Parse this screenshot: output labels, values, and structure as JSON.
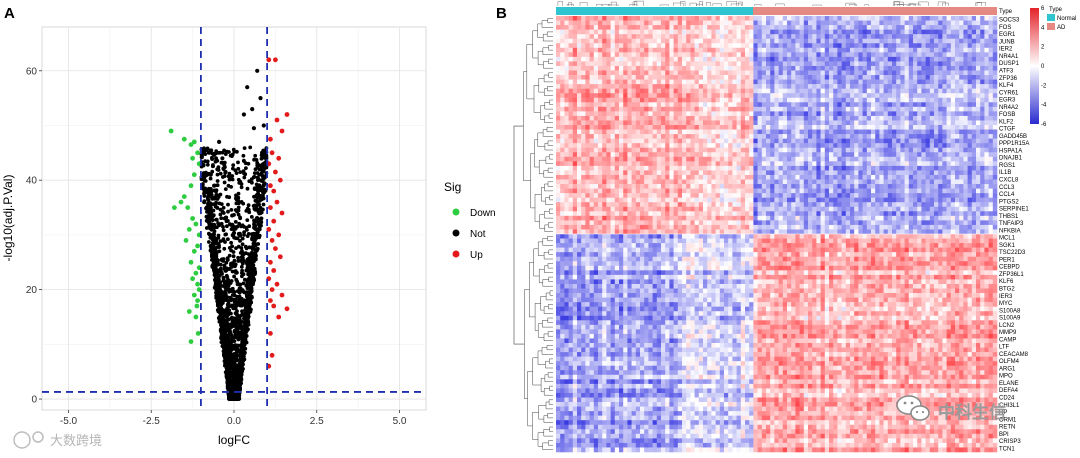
{
  "panel_a": {
    "label": "A",
    "chart_data": {
      "type": "scatter",
      "title": "",
      "xlabel": "logFC",
      "ylabel": "-log10(adj.P.Val)",
      "xlim": [
        -5.8,
        5.8
      ],
      "ylim": [
        -2,
        68
      ],
      "xticks": [
        "-5.0",
        "-2.5",
        "0.0",
        "2.5",
        "5.0"
      ],
      "xtick_values": [
        -5,
        -2.5,
        0,
        2.5,
        5
      ],
      "yticks": [
        "0",
        "20",
        "40",
        "60"
      ],
      "ytick_values": [
        0,
        20,
        40,
        60
      ],
      "thresholds": {
        "logFC": [
          -1,
          1
        ],
        "neg_log10_p": 1.3
      },
      "legend": {
        "title": "Sig",
        "entries": [
          {
            "label": "Down",
            "color": "#2ecc40"
          },
          {
            "label": "Not",
            "color": "#000000"
          },
          {
            "label": "Up",
            "color": "#e31a1c"
          }
        ]
      },
      "series": [
        {
          "name": "Down",
          "points": [
            [
              -1.9,
              49
            ],
            [
              -1.5,
              47.5
            ],
            [
              -1.3,
              46.5
            ],
            [
              -1.2,
              47
            ],
            [
              -1.25,
              44
            ],
            [
              -1.1,
              45
            ],
            [
              -1.05,
              43
            ],
            [
              -1.2,
              41
            ],
            [
              -1.3,
              39
            ],
            [
              -1.5,
              37
            ],
            [
              -1.6,
              36
            ],
            [
              -1.4,
              35
            ],
            [
              -1.8,
              35
            ],
            [
              -1.25,
              33
            ],
            [
              -1.15,
              32
            ],
            [
              -1.35,
              31
            ],
            [
              -1.05,
              30
            ],
            [
              -1.45,
              29
            ],
            [
              -1.1,
              28
            ],
            [
              -1.2,
              27
            ],
            [
              -1.3,
              25
            ],
            [
              -1.05,
              24
            ],
            [
              -1.15,
              23
            ],
            [
              -1.25,
              22
            ],
            [
              -1.1,
              21
            ],
            [
              -1.05,
              20
            ],
            [
              -1.2,
              19
            ],
            [
              -1.1,
              18
            ],
            [
              -1.35,
              16
            ],
            [
              -1.15,
              15
            ],
            [
              -1.3,
              10.5
            ],
            [
              -1.08,
              12
            ],
            [
              -1.12,
              17
            ]
          ]
        },
        {
          "name": "Up",
          "points": [
            [
              1.05,
              62
            ],
            [
              1.25,
              62
            ],
            [
              1.6,
              52
            ],
            [
              1.3,
              51
            ],
            [
              1.45,
              49
            ],
            [
              1.1,
              47.5
            ],
            [
              1.15,
              45
            ],
            [
              1.35,
              44
            ],
            [
              1.05,
              43
            ],
            [
              1.25,
              41.5
            ],
            [
              1.4,
              40
            ],
            [
              1.1,
              39
            ],
            [
              1.2,
              38
            ],
            [
              1.3,
              36
            ],
            [
              1.1,
              35
            ],
            [
              1.45,
              34
            ],
            [
              1.2,
              32.5
            ],
            [
              1.05,
              31
            ],
            [
              1.35,
              30
            ],
            [
              1.15,
              29
            ],
            [
              1.25,
              27.5
            ],
            [
              1.4,
              26
            ],
            [
              1.1,
              25
            ],
            [
              1.2,
              23.5
            ],
            [
              1.05,
              22
            ],
            [
              1.3,
              21
            ],
            [
              1.15,
              20
            ],
            [
              1.45,
              19
            ],
            [
              1.1,
              18
            ],
            [
              1.2,
              17
            ],
            [
              1.35,
              15
            ],
            [
              1.6,
              16.5
            ],
            [
              1.1,
              12
            ],
            [
              1.15,
              8
            ],
            [
              1.05,
              6
            ]
          ]
        }
      ]
    }
  },
  "panel_b": {
    "label": "B",
    "chart_data": {
      "type": "heatmap",
      "annotation_title": "Type",
      "groups": [
        {
          "name": "Normal",
          "color": "#2ec4d0"
        },
        {
          "name": "AD",
          "color": "#e48a82"
        }
      ],
      "colorbar": {
        "title": "Type",
        "ticks": [
          "6",
          "4",
          "2",
          "0",
          "-2",
          "-4",
          "-6"
        ],
        "range": [
          -6,
          6
        ],
        "low_color": "#2a2ad0",
        "mid_color": "#ffffff",
        "high_color": "#e3232a"
      },
      "row_blocks": [
        {
          "name": "upregulated in Normal",
          "pattern": "Normal red, AD blue"
        },
        {
          "name": "upregulated in AD",
          "pattern": "Normal blue, AD red"
        }
      ],
      "row_labels": [
        "SOCS3",
        "FOS",
        "EGR1",
        "JUNB",
        "IER2",
        "NR4A1",
        "DUSP1",
        "ATF3",
        "ZFP36",
        "KLF4",
        "CYR61",
        "EGR3",
        "NR4A2",
        "FOSB",
        "KLF2",
        "CTGF",
        "GADD45B",
        "PPP1R15A",
        "HSPA1A",
        "DNAJB1",
        "RGS1",
        "IL1B",
        "CXCL8",
        "CCL3",
        "CCL4",
        "PTGS2",
        "SERPINE1",
        "THBS1",
        "TNFAIP3",
        "NFKBIA",
        "MCL1",
        "SGK1",
        "TSC22D3",
        "PER1",
        "CEBPD",
        "ZFP36L1",
        "KLF6",
        "BTG2",
        "IER3",
        "MYC",
        "S100A8",
        "S100A9",
        "LCN2",
        "MMP9",
        "CAMP",
        "LTF",
        "CEACAM8",
        "OLFM4",
        "ARG1",
        "MPO",
        "ELANE",
        "DEFA4",
        "CD24",
        "CHI3L1",
        "HP",
        "ORM1",
        "RETN",
        "BPI",
        "CRISP3",
        "TCN1"
      ]
    }
  },
  "watermarks": {
    "left": "大数跨境",
    "right": "中科生信"
  }
}
